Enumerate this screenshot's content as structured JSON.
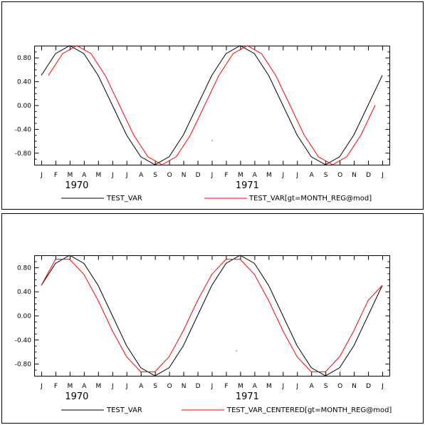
{
  "chart_data": [
    {
      "type": "line",
      "y_ticks": [
        "0.80",
        "0.40",
        "0.00",
        "-0.40",
        "-0.80"
      ],
      "y_tick_values": [
        0.8,
        0.4,
        0.0,
        -0.4,
        -0.8
      ],
      "ylim": [
        -1.0,
        1.0
      ],
      "month_labels": [
        "J",
        "F",
        "M",
        "A",
        "M",
        "J",
        "J",
        "A",
        "S",
        "O",
        "N",
        "D",
        "J",
        "F",
        "M",
        "A",
        "M",
        "J",
        "J",
        "A",
        "S",
        "O",
        "N",
        "D",
        "J"
      ],
      "year_labels": [
        "1970",
        "1971"
      ],
      "series": [
        {
          "name": "TEST_VAR",
          "color": "#000000",
          "x": [
            0,
            1,
            2,
            3,
            4,
            5,
            6,
            7,
            8,
            9,
            10,
            11,
            12,
            13,
            14,
            15,
            16,
            17,
            18,
            19,
            20,
            21,
            22,
            23,
            24
          ],
          "values": [
            0.5,
            0.866,
            1.0,
            0.866,
            0.5,
            0.0,
            -0.5,
            -0.866,
            -1.0,
            -0.866,
            -0.5,
            0.0,
            0.5,
            0.866,
            1.0,
            0.866,
            0.5,
            0.0,
            -0.5,
            -0.866,
            -1.0,
            -0.866,
            -0.5,
            0.0,
            0.5
          ]
        },
        {
          "name": "TEST_VAR[gt=MONTH_REG@mod]",
          "color": "#ff0000",
          "x": [
            0.5,
            1.5,
            2.5,
            3.5,
            4.5,
            5.5,
            6.5,
            7.5,
            8.5,
            9.5,
            10.5,
            11.5,
            12.5,
            13.5,
            14.5,
            15.5,
            16.5,
            17.5,
            18.5,
            19.5,
            20.5,
            21.5,
            22.5,
            23.5
          ],
          "values": [
            0.5,
            0.866,
            1.0,
            0.866,
            0.5,
            0.0,
            -0.5,
            -0.866,
            -1.0,
            -0.866,
            -0.5,
            0.0,
            0.5,
            0.866,
            1.0,
            0.866,
            0.5,
            0.0,
            -0.5,
            -0.866,
            -1.0,
            -0.866,
            -0.5,
            0.0
          ]
        }
      ]
    },
    {
      "type": "line",
      "y_ticks": [
        "0.80",
        "0.40",
        "0.00",
        "-0.40",
        "-0.80"
      ],
      "y_tick_values": [
        0.8,
        0.4,
        0.0,
        -0.4,
        -0.8
      ],
      "ylim": [
        -1.0,
        1.0
      ],
      "month_labels": [
        "J",
        "F",
        "M",
        "A",
        "M",
        "J",
        "J",
        "A",
        "S",
        "O",
        "N",
        "D",
        "J",
        "F",
        "M",
        "A",
        "M",
        "J",
        "J",
        "A",
        "S",
        "O",
        "N",
        "D",
        "J"
      ],
      "year_labels": [
        "1970",
        "1971"
      ],
      "series": [
        {
          "name": "TEST_VAR",
          "color": "#000000",
          "x": [
            0,
            1,
            2,
            3,
            4,
            5,
            6,
            7,
            8,
            9,
            10,
            11,
            12,
            13,
            14,
            15,
            16,
            17,
            18,
            19,
            20,
            21,
            22,
            23,
            24
          ],
          "values": [
            0.5,
            0.866,
            1.0,
            0.866,
            0.5,
            0.0,
            -0.5,
            -0.866,
            -1.0,
            -0.866,
            -0.5,
            0.0,
            0.5,
            0.866,
            1.0,
            0.866,
            0.5,
            0.0,
            -0.5,
            -0.866,
            -1.0,
            -0.866,
            -0.5,
            0.0,
            0.5
          ]
        },
        {
          "name": "TEST_VAR_CENTERED[gt=MONTH_REG@mod]",
          "color": "#ff0000",
          "x": [
            0,
            1,
            2,
            3,
            4,
            5,
            6,
            7,
            8,
            9,
            10,
            11,
            12,
            13,
            14,
            15,
            16,
            17,
            18,
            19,
            20,
            21,
            22,
            23,
            24
          ],
          "values": [
            0.5,
            0.933,
            0.933,
            0.683,
            0.25,
            -0.25,
            -0.683,
            -0.933,
            -0.933,
            -0.683,
            -0.25,
            0.25,
            0.683,
            0.933,
            0.933,
            0.683,
            0.25,
            -0.25,
            -0.683,
            -0.933,
            -0.933,
            -0.683,
            -0.25,
            0.25,
            0.5
          ]
        }
      ]
    }
  ]
}
